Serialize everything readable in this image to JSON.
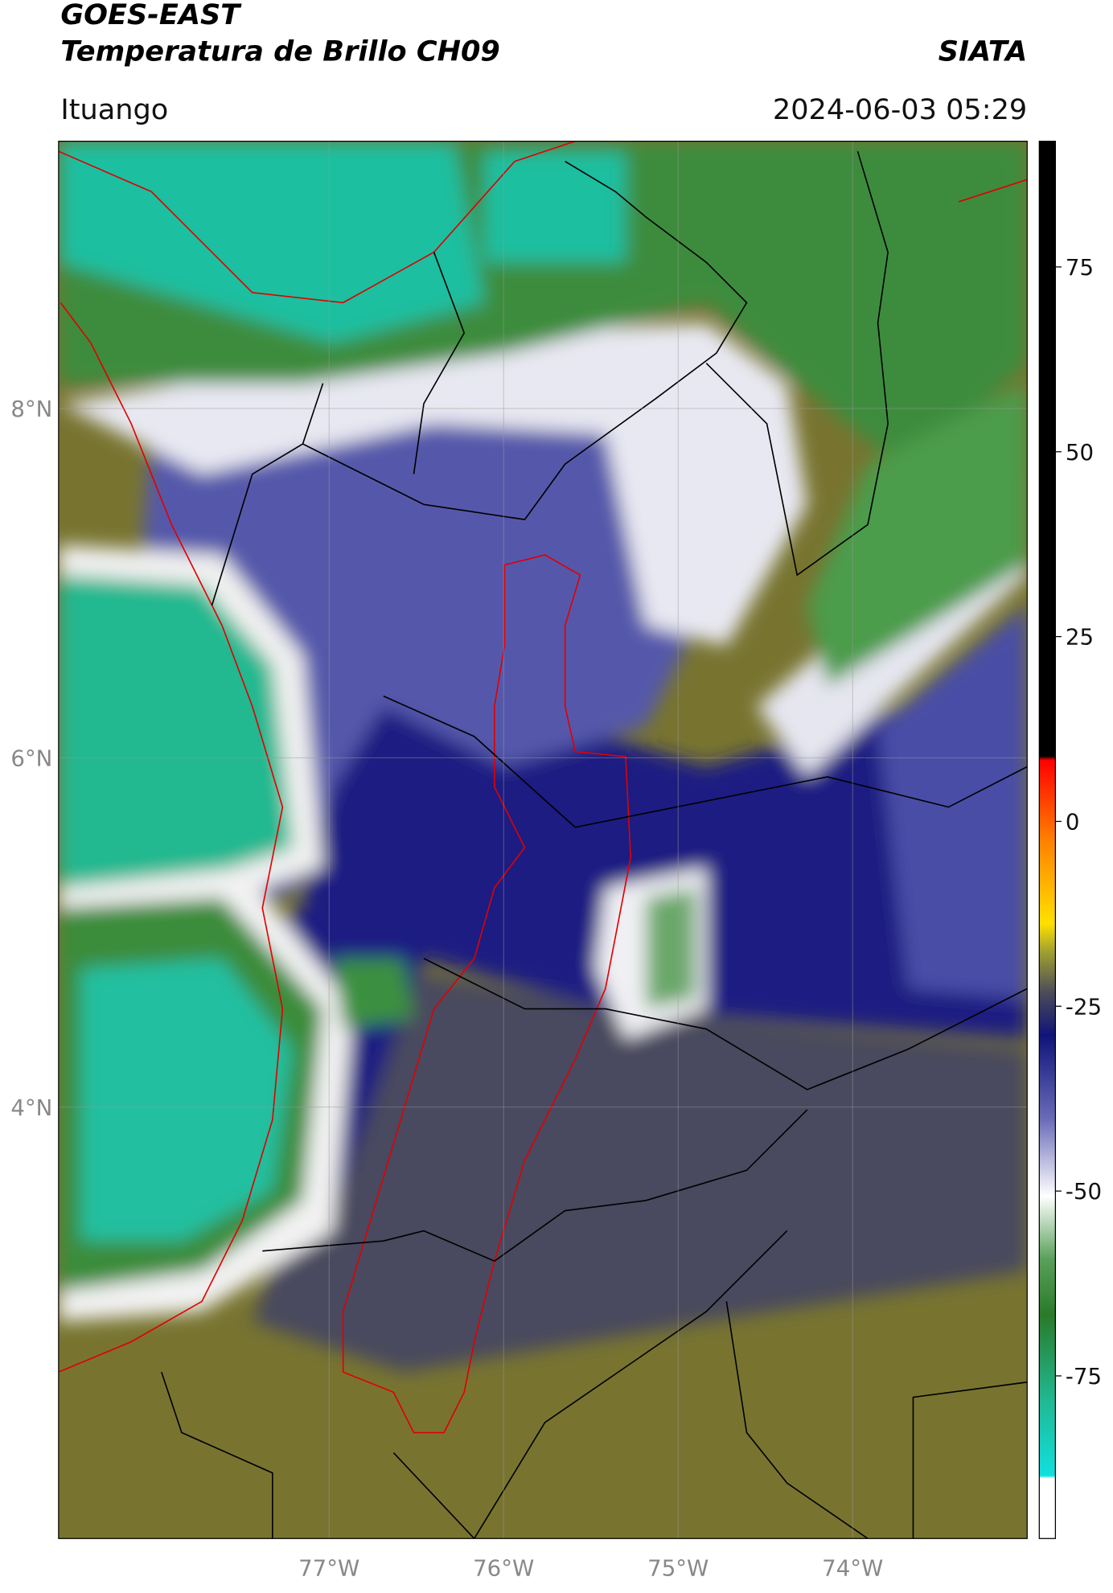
{
  "header": {
    "title": "GOES-EAST",
    "subtitle": "Temperatura de Brillo CH09",
    "source": "SIATA",
    "location": "Ituango",
    "timestamp": "2024-06-03 05:29"
  },
  "map": {
    "xlim": [
      -78.55,
      -73.0
    ],
    "ylim": [
      1.53,
      9.53
    ],
    "xticks": [
      {
        "value": -77,
        "label": "77°W"
      },
      {
        "value": -76,
        "label": "76°W"
      },
      {
        "value": -75,
        "label": "75°W"
      },
      {
        "value": -74,
        "label": "74°W"
      }
    ],
    "yticks": [
      {
        "value": 8,
        "label": "8°N"
      },
      {
        "value": 6,
        "label": "6°N"
      },
      {
        "value": 4,
        "label": "4°N"
      }
    ]
  },
  "colorbar": {
    "lim": [
      -97,
      92
    ],
    "ticks": [
      75,
      50,
      25,
      0,
      -25,
      -50,
      -75
    ]
  }
}
